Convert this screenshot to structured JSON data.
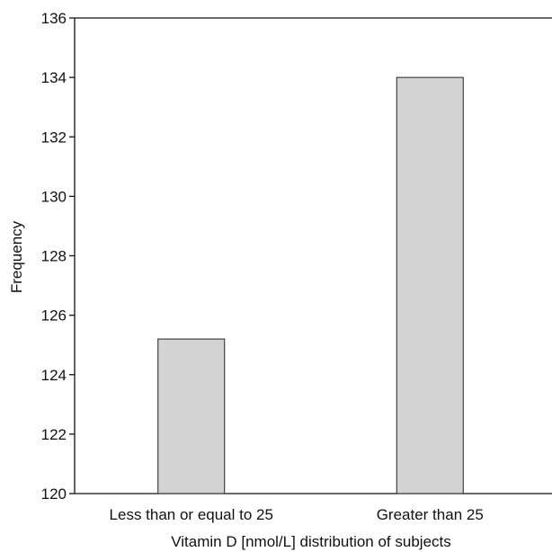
{
  "chart_data": {
    "type": "bar",
    "title": "",
    "xlabel": "Vitamin D [nmol/L] distribution of subjects",
    "ylabel": "Frequency",
    "categories": [
      "Less than or equal to 25",
      "Greater than 25"
    ],
    "values": [
      125.2,
      134.0
    ],
    "ylim": [
      120,
      136
    ],
    "yticks": [
      120,
      122,
      124,
      126,
      128,
      130,
      132,
      134,
      136
    ],
    "grid": false,
    "bar_color": "#d3d3d3",
    "bar_edge_color": "#222222"
  }
}
